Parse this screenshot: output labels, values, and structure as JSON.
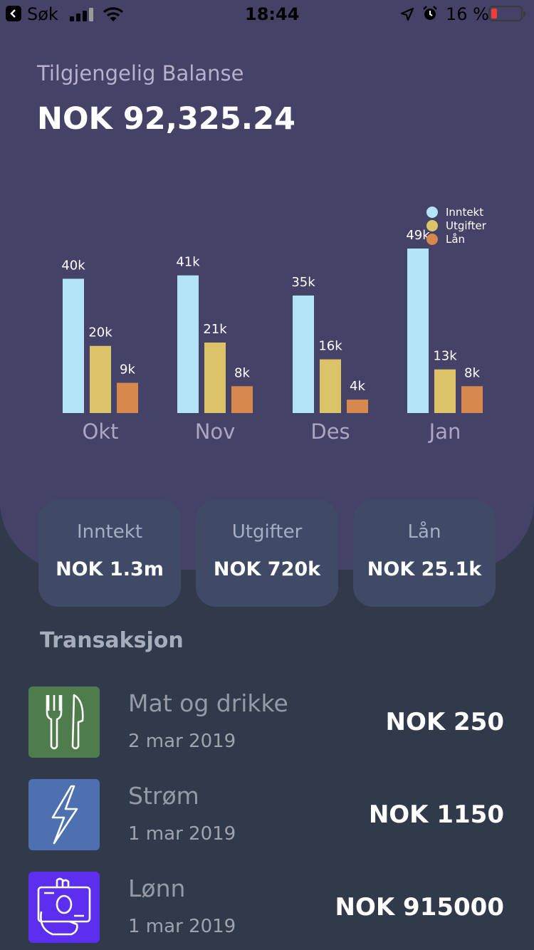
{
  "status_bar": {
    "back_label": "Søk",
    "time": "18:44",
    "battery": "16 %",
    "battery_level": 0.16
  },
  "balance": {
    "label": "Tilgjengelig Balanse",
    "value": "NOK 92,325.24"
  },
  "chart_data": {
    "type": "bar",
    "categories": [
      "Okt",
      "Nov",
      "Des",
      "Jan"
    ],
    "series": [
      {
        "name": "Inntekt",
        "values": [
          40,
          41,
          35,
          49
        ],
        "labels": [
          "40k",
          "41k",
          "35k",
          "49k"
        ],
        "color": "#b3e3f7"
      },
      {
        "name": "Utgifter",
        "values": [
          20,
          21,
          16,
          13
        ],
        "labels": [
          "20k",
          "21k",
          "16k",
          "13k"
        ],
        "color": "#dcc36a"
      },
      {
        "name": "Lån",
        "values": [
          9,
          8,
          4,
          8
        ],
        "labels": [
          "9k",
          "8k",
          "4k",
          "8k"
        ],
        "color": "#d7884c"
      }
    ],
    "ylim": [
      0,
      50
    ],
    "legend_position": "top-right",
    "grid": false
  },
  "summary": [
    {
      "label": "Inntekt",
      "value": "NOK 1.3m"
    },
    {
      "label": "Utgifter",
      "value": "NOK 720k"
    },
    {
      "label": "Lån",
      "value": "NOK 25.1k"
    }
  ],
  "transactions_title": "Transaksjon",
  "transactions": [
    {
      "name": "Mat og drikke",
      "date": "2 mar 2019",
      "amount": "NOK 250",
      "icon": "fork-knife-icon",
      "color": "#4f7c4c"
    },
    {
      "name": "Strøm",
      "date": "1 mar 2019",
      "amount": "NOK 1150",
      "icon": "lightning-icon",
      "color": "#4d70b0"
    },
    {
      "name": "Lønn",
      "date": "1 mar 2019",
      "amount": "NOK 915000",
      "icon": "salary-hand-icon",
      "color": "#5b2ef0"
    }
  ]
}
